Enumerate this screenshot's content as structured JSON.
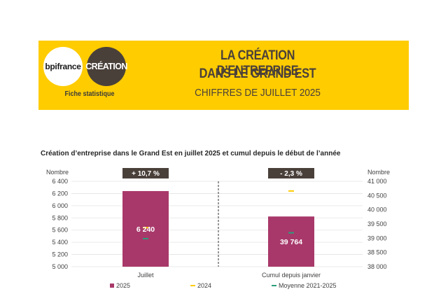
{
  "header": {
    "logo_left": "bpifrance",
    "logo_right": "CRÉATION",
    "fiche": "Fiche statistique",
    "title_line1": "LA CRÉATION D’ENTREPRISE",
    "title_line2": "DANS LE GRAND EST",
    "subtitle": "CHIFFRES DE JUILLET 2025"
  },
  "colors": {
    "banner": "#ffcc00",
    "bar_2025": "#a8386a",
    "marker_2024": "#ffcc00",
    "marker_moyenne": "#2a9d7a",
    "badge": "#4a403a"
  },
  "chart_data": {
    "type": "bar",
    "title": "Création d’entreprise dans le Grand Est en juillet 2025 et cumul depuis le début de l’année",
    "categories": [
      "Juillet",
      "Cumul depuis janvier"
    ],
    "left_axis": {
      "label": "Nombre",
      "min": 5000,
      "max": 6400,
      "ticks": [
        {
          "value": 5000,
          "label": "5 000"
        },
        {
          "value": 5200,
          "label": "5 200"
        },
        {
          "value": 5400,
          "label": "5 400"
        },
        {
          "value": 5600,
          "label": "5 600"
        },
        {
          "value": 5800,
          "label": "5 800"
        },
        {
          "value": 6000,
          "label": "6 000"
        },
        {
          "value": 6200,
          "label": "6 200"
        },
        {
          "value": 6400,
          "label": "6 400"
        }
      ]
    },
    "right_axis": {
      "label": "Nombre",
      "min": 38000,
      "max": 41000,
      "ticks": [
        {
          "value": 38000,
          "label": "38 000"
        },
        {
          "value": 38500,
          "label": "38 500"
        },
        {
          "value": 39000,
          "label": "39 000"
        },
        {
          "value": 39500,
          "label": "39 500"
        },
        {
          "value": 40000,
          "label": "40 000"
        },
        {
          "value": 40500,
          "label": "40 500"
        },
        {
          "value": 41000,
          "label": "41 000"
        }
      ]
    },
    "grid": true,
    "series": [
      {
        "name": "2025",
        "kind": "bar",
        "values": [
          6240,
          39764
        ],
        "labels": [
          "6 240",
          "39 764"
        ]
      },
      {
        "name": "2024",
        "kind": "marker",
        "values": [
          5640,
          40660
        ]
      },
      {
        "name": "Moyenne 2021-2025",
        "kind": "marker",
        "values": [
          5460,
          39190
        ]
      }
    ],
    "variations": [
      "+ 10,7 %",
      "- 2,3 %"
    ],
    "legend_position": "bottom"
  }
}
